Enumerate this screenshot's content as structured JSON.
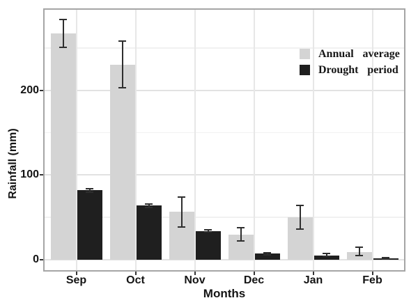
{
  "figure": {
    "background": "#ffffff",
    "text_color": "#141414",
    "panel_border_color": "#a5a5a5",
    "grid_major_color": "#e2e2e2",
    "grid_minor_color": "#f1f1f1",
    "errorbar_color": "#2e2e2e"
  },
  "chart_data": {
    "type": "bar",
    "title": "",
    "xlabel": "Months",
    "ylabel": "Rainfall (mm)",
    "categories": [
      "Sep",
      "Oct",
      "Nov",
      "Dec",
      "Jan",
      "Feb"
    ],
    "series": [
      {
        "name": "Annual average",
        "color": "#d4d4d4",
        "values": [
          267,
          230,
          57,
          30,
          50,
          9
        ],
        "error_low": [
          251,
          203,
          39,
          22,
          36,
          5
        ],
        "error_high": [
          284,
          258,
          74,
          38,
          64,
          15
        ]
      },
      {
        "name": "Drought period",
        "color": "#1f1f1f",
        "values": [
          82,
          64,
          34,
          7,
          5,
          1.5
        ],
        "error_low": [
          80,
          62,
          33,
          5.5,
          4,
          0.8
        ],
        "error_high": [
          84,
          66,
          35,
          8.5,
          7,
          2.5
        ]
      }
    ],
    "y_ticks": [
      0,
      100,
      200
    ],
    "y_minor_ticks": [
      50,
      150,
      250
    ],
    "ylim": [
      -14,
      297
    ],
    "grid": true,
    "legend_position": "top-right",
    "legend": [
      "Annual average",
      "Drought period"
    ]
  }
}
